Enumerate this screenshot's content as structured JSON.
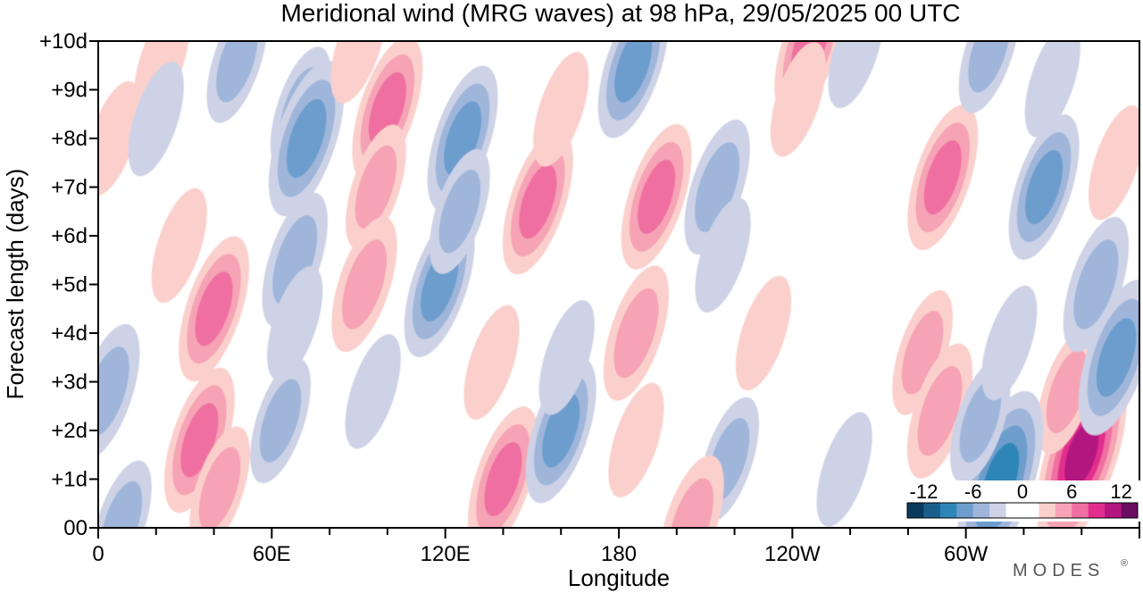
{
  "chart_data": {
    "type": "heatmap",
    "title": "Meridional wind (MRG waves) at  98 hPa,  29/05/2025  00 UTC",
    "xlabel": "Longitude",
    "ylabel": "Forecast length (days)",
    "x_ticks": [
      "0",
      "60E",
      "120E",
      "180",
      "120W",
      "60W"
    ],
    "y_ticks": [
      "00",
      "+1d",
      "+2d",
      "+3d",
      "+4d",
      "+5d",
      "+6d",
      "+7d",
      "+8d",
      "+9d",
      "+10d"
    ],
    "xlim_deg_east": [
      0,
      360
    ],
    "ylim_days": [
      0,
      10
    ],
    "colorbar": {
      "tick_labels": [
        "-12",
        "-6",
        "0",
        "6",
        "12"
      ],
      "levels": [
        -14,
        -12,
        -10,
        -8,
        -6,
        -4,
        -2,
        0,
        2,
        4,
        6,
        8,
        10,
        12,
        14
      ],
      "colors": [
        "#0c3a5c",
        "#1a5f8c",
        "#2e86b8",
        "#6d9dcd",
        "#9fb6da",
        "#cdd2e6",
        "#ffffff",
        "#ffffff",
        "#fbd0cc",
        "#f6a3b5",
        "#ef6fa0",
        "#e22e8e",
        "#b4157f",
        "#6a0d62"
      ]
    },
    "features": [
      {
        "sign": "+",
        "lon": 22,
        "day": 9.6,
        "peak": 2
      },
      {
        "sign": "-",
        "lon": 48,
        "day": 9.6,
        "peak": -3
      },
      {
        "sign": "-",
        "lon": 70,
        "day": 8.6,
        "peak": -3
      },
      {
        "sign": "-",
        "lon": 72,
        "day": 8.0,
        "peak": -6
      },
      {
        "sign": "+",
        "lon": 90,
        "day": 9.9,
        "peak": 2
      },
      {
        "sign": "+",
        "lon": 100,
        "day": 8.6,
        "peak": 5
      },
      {
        "sign": "+",
        "lon": 96,
        "day": 7.0,
        "peak": 3
      },
      {
        "sign": "+",
        "lon": 92,
        "day": 5.0,
        "peak": 4
      },
      {
        "sign": "-",
        "lon": 126,
        "day": 8.0,
        "peak": -5
      },
      {
        "sign": "-",
        "lon": 118,
        "day": 5.0,
        "peak": -5
      },
      {
        "sign": "-",
        "lon": 125,
        "day": 6.5,
        "peak": -3
      },
      {
        "sign": "+",
        "lon": 40,
        "day": 4.5,
        "peak": 5
      },
      {
        "sign": "+",
        "lon": 35,
        "day": 1.8,
        "peak": 5
      },
      {
        "sign": "+",
        "lon": 42,
        "day": 0.8,
        "peak": 3
      },
      {
        "sign": "+",
        "lon": 28,
        "day": 5.8,
        "peak": 2
      },
      {
        "sign": "-",
        "lon": 68,
        "day": 5.5,
        "peak": -4
      },
      {
        "sign": "-",
        "lon": 68,
        "day": 4.2,
        "peak": -2
      },
      {
        "sign": "-",
        "lon": 63,
        "day": 2.2,
        "peak": -3
      },
      {
        "sign": "-",
        "lon": 3,
        "day": 2.8,
        "peak": -4
      },
      {
        "sign": "-",
        "lon": 8,
        "day": 0.1,
        "peak": -3
      },
      {
        "sign": "+",
        "lon": 140,
        "day": 1.0,
        "peak": 5
      },
      {
        "sign": "+",
        "lon": 136,
        "day": 3.4,
        "peak": 2
      },
      {
        "sign": "+",
        "lon": 152,
        "day": 6.7,
        "peak": 5
      },
      {
        "sign": "+",
        "lon": 160,
        "day": 8.6,
        "peak": 2
      },
      {
        "sign": "-",
        "lon": 160,
        "day": 2.0,
        "peak": -5
      },
      {
        "sign": "-",
        "lon": 162,
        "day": 3.5,
        "peak": -2
      },
      {
        "sign": "-",
        "lon": 185,
        "day": 9.5,
        "peak": -5
      },
      {
        "sign": "+",
        "lon": 193,
        "day": 6.8,
        "peak": 5
      },
      {
        "sign": "+",
        "lon": 186,
        "day": 4.0,
        "peak": 4
      },
      {
        "sign": "+",
        "lon": 186,
        "day": 1.8,
        "peak": 2
      },
      {
        "sign": "-",
        "lon": 214,
        "day": 7.0,
        "peak": -4
      },
      {
        "sign": "-",
        "lon": 216,
        "day": 5.6,
        "peak": -2
      },
      {
        "sign": "-",
        "lon": 218,
        "day": 1.4,
        "peak": -3
      },
      {
        "sign": "+",
        "lon": 205,
        "day": 0.1,
        "peak": 4
      },
      {
        "sign": "+",
        "lon": 246,
        "day": 9.9,
        "peak": 5
      },
      {
        "sign": "+",
        "lon": 242,
        "day": 8.8,
        "peak": 2
      },
      {
        "sign": "+",
        "lon": 230,
        "day": 4.0,
        "peak": 2
      },
      {
        "sign": "+",
        "lon": 292,
        "day": 7.2,
        "peak": 5
      },
      {
        "sign": "+",
        "lon": 285,
        "day": 3.6,
        "peak": 3
      },
      {
        "sign": "+",
        "lon": 291,
        "day": 2.4,
        "peak": 4
      },
      {
        "sign": "+",
        "lon": 340,
        "day": 1.5,
        "peak": 9
      },
      {
        "sign": "+",
        "lon": 335,
        "day": 2.8,
        "peak": 3
      },
      {
        "sign": "-",
        "lon": 312,
        "day": 1.0,
        "peak": -8
      },
      {
        "sign": "-",
        "lon": 305,
        "day": 2.2,
        "peak": -3
      },
      {
        "sign": "-",
        "lon": 315,
        "day": 3.8,
        "peak": -2
      },
      {
        "sign": "-",
        "lon": 327,
        "day": 7.0,
        "peak": -5
      },
      {
        "sign": "-",
        "lon": 345,
        "day": 5.0,
        "peak": -4
      },
      {
        "sign": "-",
        "lon": 352,
        "day": 3.5,
        "peak": -6
      },
      {
        "sign": "-",
        "lon": 308,
        "day": 9.8,
        "peak": -3
      },
      {
        "sign": "-",
        "lon": 330,
        "day": 9.2,
        "peak": -2
      },
      {
        "sign": "+",
        "lon": 352,
        "day": 7.5,
        "peak": 2
      },
      {
        "sign": "+",
        "lon": 5,
        "day": 8.0,
        "peak": 2
      },
      {
        "sign": "-",
        "lon": 20,
        "day": 8.4,
        "peak": -2
      },
      {
        "sign": "-",
        "lon": 258,
        "day": 1.2,
        "peak": -2
      },
      {
        "sign": "-",
        "lon": 262,
        "day": 9.8,
        "peak": -2
      },
      {
        "sign": "-",
        "lon": 95,
        "day": 2.8,
        "peak": -2
      }
    ]
  },
  "branding": {
    "logo_text": "MODES",
    "logo_mark": "®"
  }
}
